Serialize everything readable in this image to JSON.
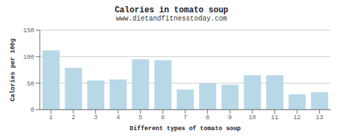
{
  "chart_data": {
    "type": "bar",
    "title": "Calories in tomato soup",
    "subtitle": "www.dietandfitnesstoday.com",
    "xlabel": "Different types of tomato soup",
    "ylabel": "Calories per 100g",
    "categories": [
      1,
      2,
      3,
      4,
      5,
      6,
      7,
      8,
      9,
      10,
      11,
      12,
      13
    ],
    "values": [
      112,
      79,
      55,
      57,
      95,
      93,
      38,
      50,
      47,
      65,
      65,
      29,
      33
    ],
    "color": "#b8d8e8",
    "ylim": [
      0,
      150
    ],
    "yticks": [
      0,
      50,
      100,
      150
    ],
    "grid": true
  }
}
